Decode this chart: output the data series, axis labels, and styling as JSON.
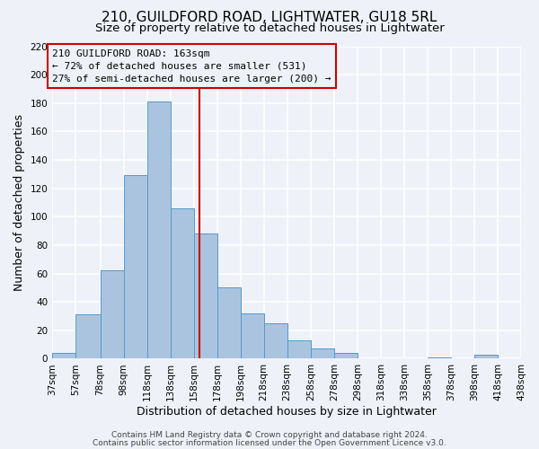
{
  "title": "210, GUILDFORD ROAD, LIGHTWATER, GU18 5RL",
  "subtitle": "Size of property relative to detached houses in Lightwater",
  "xlabel": "Distribution of detached houses by size in Lightwater",
  "ylabel": "Number of detached properties",
  "bar_edges": [
    37,
    57,
    78,
    98,
    118,
    138,
    158,
    178,
    198,
    218,
    238,
    258,
    278,
    298,
    318,
    338,
    358,
    378,
    398,
    418,
    438
  ],
  "bar_heights": [
    4,
    31,
    62,
    129,
    181,
    106,
    88,
    50,
    32,
    25,
    13,
    7,
    4,
    0,
    0,
    0,
    1,
    0,
    3,
    0
  ],
  "bar_color": "#aac4e0",
  "bar_edge_color": "#5599cc",
  "vline_x": 163,
  "vline_color": "#cc0000",
  "annotation_box_color": "#cc0000",
  "annotation_line1": "210 GUILDFORD ROAD: 163sqm",
  "annotation_line2": "← 72% of detached houses are smaller (531)",
  "annotation_line3": "27% of semi-detached houses are larger (200) →",
  "ylim": [
    0,
    220
  ],
  "yticks": [
    0,
    20,
    40,
    60,
    80,
    100,
    120,
    140,
    160,
    180,
    200,
    220
  ],
  "xtick_labels": [
    "37sqm",
    "57sqm",
    "78sqm",
    "98sqm",
    "118sqm",
    "138sqm",
    "158sqm",
    "178sqm",
    "198sqm",
    "218sqm",
    "238sqm",
    "258sqm",
    "278sqm",
    "298sqm",
    "318sqm",
    "338sqm",
    "358sqm",
    "378sqm",
    "398sqm",
    "418sqm",
    "438sqm"
  ],
  "footnote1": "Contains HM Land Registry data © Crown copyright and database right 2024.",
  "footnote2": "Contains public sector information licensed under the Open Government Licence v3.0.",
  "background_color": "#eef2f8",
  "grid_color": "#ffffff",
  "title_fontsize": 11,
  "subtitle_fontsize": 9.5,
  "axis_label_fontsize": 9,
  "tick_fontsize": 7.5,
  "annotation_fontsize": 8,
  "footnote_fontsize": 6.5
}
